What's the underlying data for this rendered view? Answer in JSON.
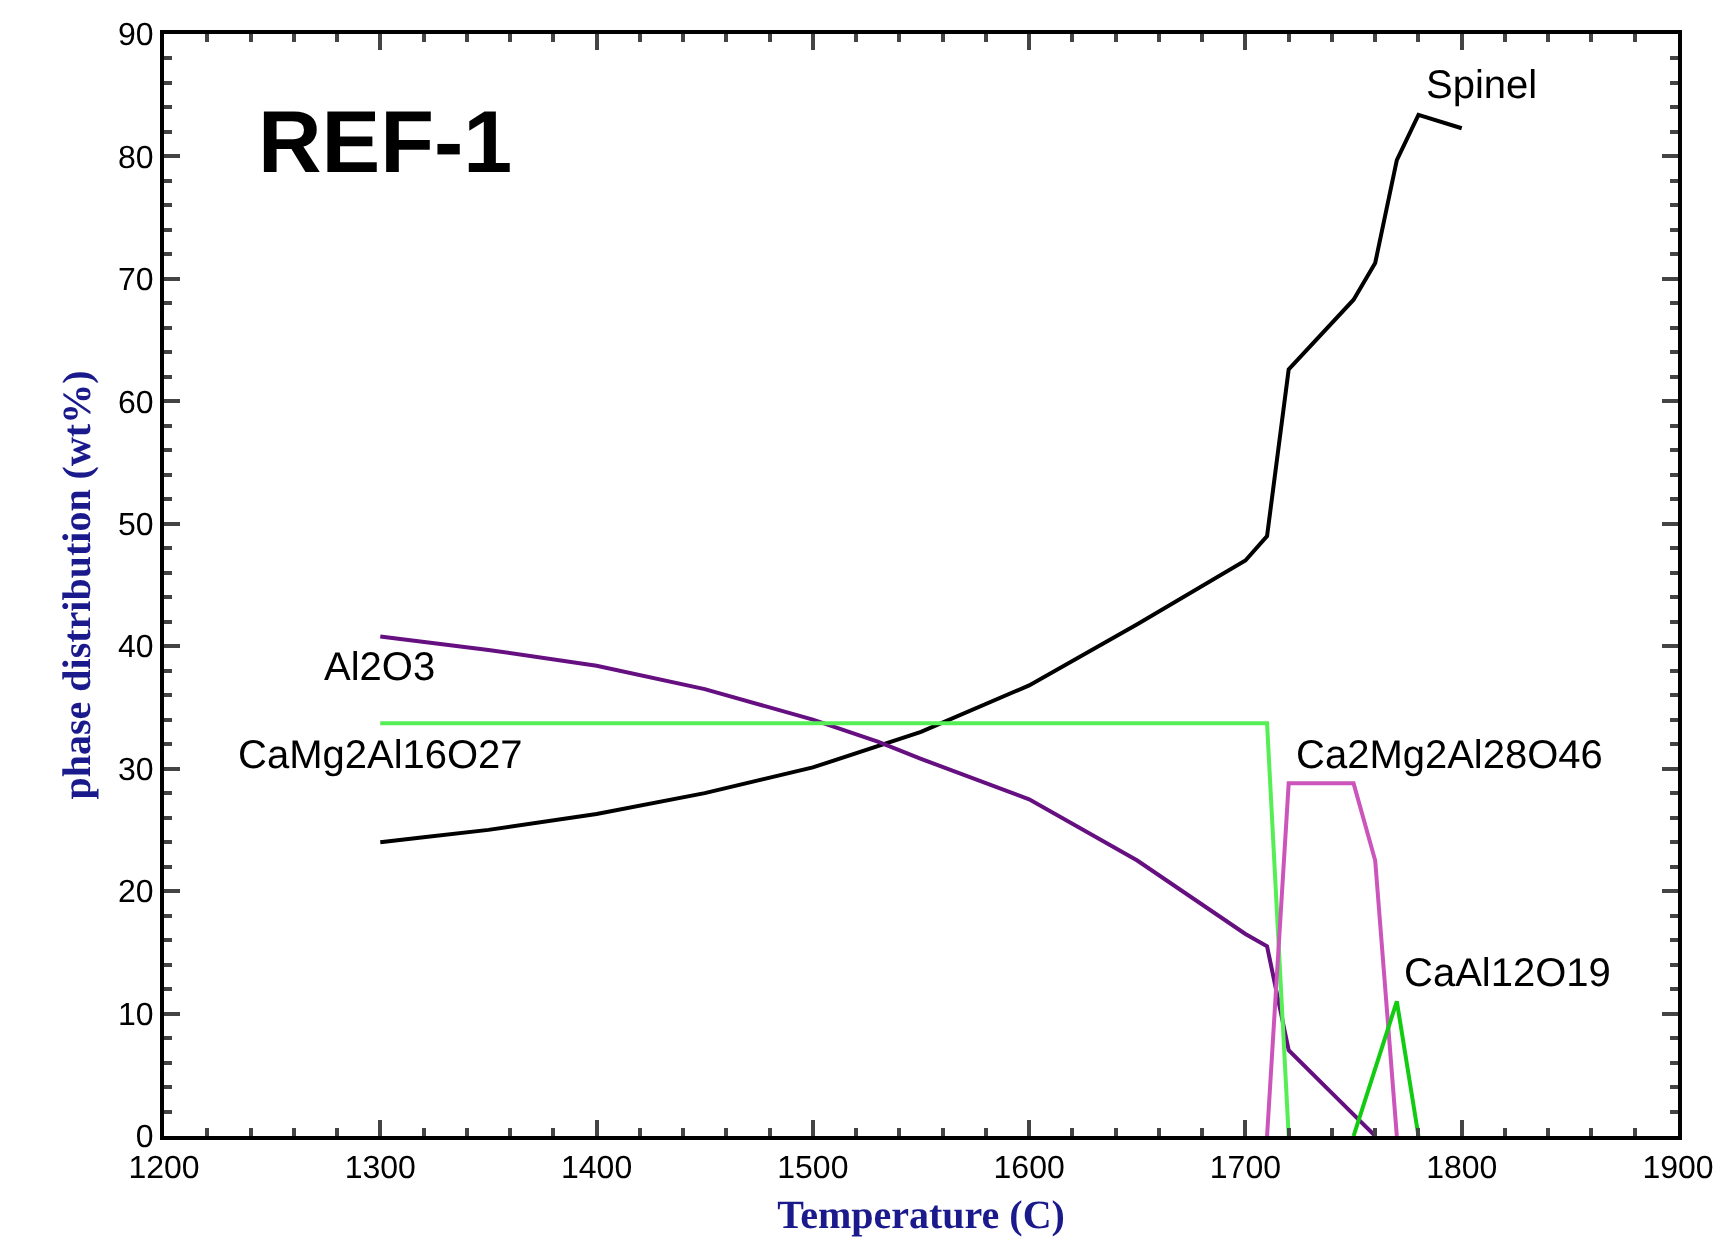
{
  "chart_data": {
    "type": "line",
    "title": "REF-1",
    "xlabel": "Temperature (C)",
    "ylabel": "phase distribution (wt%)",
    "xlim": [
      1200,
      1900
    ],
    "xticks": [
      1200,
      1300,
      1400,
      1500,
      1600,
      1700,
      1800,
      1900
    ],
    "ylim": [
      0,
      90
    ],
    "yticks": [
      0,
      10,
      20,
      30,
      40,
      50,
      60,
      70,
      80,
      90
    ],
    "grid": false,
    "legend": false,
    "marker": "none",
    "line_style": "solid",
    "series": [
      {
        "name": "Spinel",
        "color": "#000000",
        "x": [
          1300,
          1320,
          1350,
          1400,
          1450,
          1500,
          1550,
          1600,
          1650,
          1700,
          1710,
          1720,
          1750,
          1760,
          1770,
          1780,
          1800
        ],
        "values": [
          24,
          24.4,
          25,
          26.3,
          28,
          30.1,
          33,
          36.8,
          41.8,
          47,
          49,
          62.6,
          68.3,
          71.3,
          79.7,
          83.4,
          82.3
        ]
      },
      {
        "name": "Al2O3",
        "color": "#660f80",
        "x": [
          1300,
          1350,
          1400,
          1450,
          1500,
          1530,
          1550,
          1600,
          1650,
          1700,
          1710,
          1720,
          1740,
          1760
        ],
        "values": [
          40.8,
          39.7,
          38.4,
          36.5,
          34,
          32.2,
          30.8,
          27.5,
          22.5,
          16.5,
          15.5,
          7,
          3.5,
          0
        ]
      },
      {
        "name": "CaMg2Al16O27",
        "color": "#55ee55",
        "x": [
          1300,
          1710,
          1720
        ],
        "values": [
          33.7,
          33.7,
          0
        ]
      },
      {
        "name": "Ca2Mg2Al28O46",
        "color": "#cc55bb",
        "x": [
          1710,
          1720,
          1750,
          1760,
          1770
        ],
        "values": [
          0,
          28.8,
          28.8,
          22.5,
          0
        ]
      },
      {
        "name": "CaAl12O19",
        "color": "#11cc11",
        "x": [
          1750,
          1760,
          1770,
          1780
        ],
        "values": [
          0,
          5.5,
          11,
          0
        ]
      }
    ]
  }
}
